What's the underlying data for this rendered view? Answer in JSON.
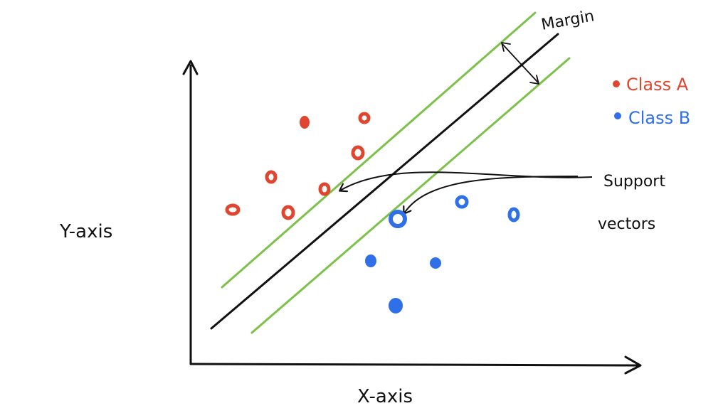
{
  "diagram": {
    "axes": {
      "x_label": "X-axis",
      "y_label": "Y-axis"
    },
    "margin_label": "Margin",
    "support_vectors_label": {
      "line1": "Support",
      "line2": "vectors"
    },
    "legend": [
      {
        "label": "Class A",
        "color": "#e0462f"
      },
      {
        "label": "Class B",
        "color": "#2f6fe8"
      }
    ],
    "colors": {
      "class_a": "#e0462f",
      "class_b": "#2f6fe8",
      "margin_lines": "#7cc14a",
      "hyperplane": "#111111",
      "axes": "#111111"
    }
  }
}
